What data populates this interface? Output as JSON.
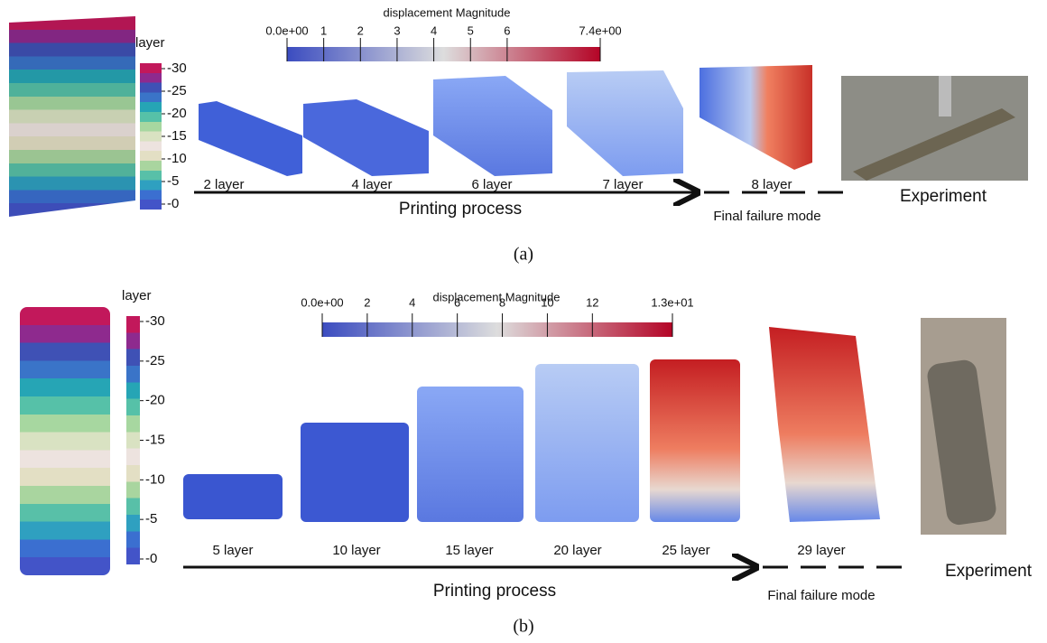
{
  "panels": [
    {
      "layer_title": "layer",
      "layer_ticks": [
        "-30",
        "-25",
        "-20",
        "-15",
        "-10",
        "-5",
        "-0"
      ],
      "displacement_title": "displacement Magnitude",
      "displacement_ticks": [
        "0.0e+00",
        "1",
        "2",
        "3",
        "4",
        "5",
        "6",
        "7.4e+00"
      ],
      "stages": [
        "2 layer",
        "4 layer",
        "6 layer",
        "7 layer",
        "8 layer"
      ],
      "process": "Printing process",
      "failure": "Final failure mode",
      "experiment": "Experiment",
      "caption": "(a)"
    },
    {
      "layer_title": "layer",
      "layer_ticks": [
        "-30",
        "-25",
        "-20",
        "-15",
        "-10",
        "-5",
        "-0"
      ],
      "displacement_title": "displacement Magnitude",
      "displacement_ticks": [
        "0.0e+00",
        "2",
        "4",
        "6",
        "8",
        "10",
        "12",
        "1.3e+01"
      ],
      "stages": [
        "5 layer",
        "10 layer",
        "15 layer",
        "20 layer",
        "25 layer",
        "29 layer"
      ],
      "process": "Printing process",
      "failure": "Final failure mode",
      "experiment": "Experiment",
      "caption": "(b)"
    }
  ]
}
